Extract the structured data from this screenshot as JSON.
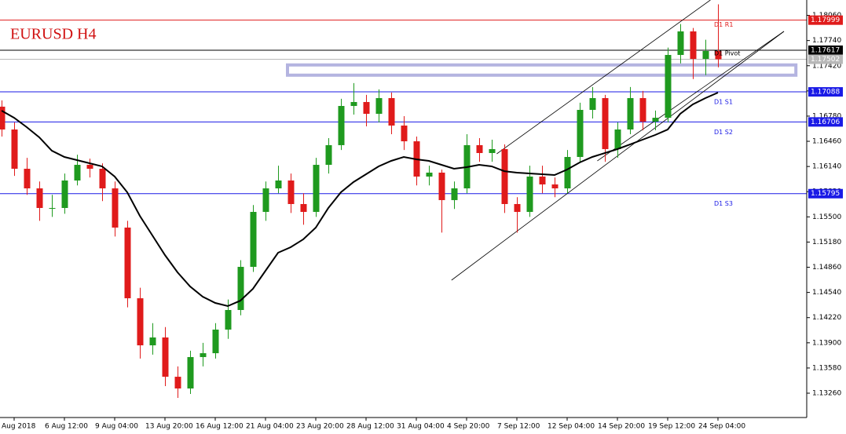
{
  "chart_data": {
    "type": "candlestick",
    "title": "EURUSD H4",
    "bull_color": "#1f9a1f",
    "bear_color": "#e01b1b",
    "ma_color": "#000000",
    "ylim": [
      1.12951,
      1.18255
    ],
    "yticks": [
      {
        "value": 1.1326,
        "label": "1.13260"
      },
      {
        "value": 1.1358,
        "label": "1.13580"
      },
      {
        "value": 1.139,
        "label": "1.13900"
      },
      {
        "value": 1.1422,
        "label": "1.14220"
      },
      {
        "value": 1.1454,
        "label": "1.14540"
      },
      {
        "value": 1.1486,
        "label": "1.14860"
      },
      {
        "value": 1.1518,
        "label": "1.15180"
      },
      {
        "value": 1.155,
        "label": "1.15500"
      },
      {
        "value": 1.1582,
        "label": "1.15820"
      },
      {
        "value": 1.1614,
        "label": "1.16140"
      },
      {
        "value": 1.1646,
        "label": "1.16460"
      },
      {
        "value": 1.1678,
        "label": "1.16780"
      },
      {
        "value": 1.171,
        "label": "1.17100"
      },
      {
        "value": 1.1742,
        "label": "1.17420"
      },
      {
        "value": 1.1774,
        "label": "1.17740"
      },
      {
        "value": 1.1806,
        "label": "1.18060"
      }
    ],
    "categories": [
      null,
      "Aug 2018",
      null,
      null,
      null,
      "6 Aug 12:00",
      null,
      null,
      null,
      "9 Aug 04:00",
      null,
      null,
      null,
      "13 Aug 20:00",
      null,
      null,
      null,
      "16 Aug 12:00",
      null,
      null,
      null,
      "21 Aug 04:00",
      null,
      null,
      null,
      "23 Aug 20:00",
      null,
      null,
      null,
      "28 Aug 12:00",
      null,
      null,
      null,
      "31 Aug 04:00",
      null,
      null,
      null,
      "4 Sep 20:00",
      null,
      null,
      null,
      "7 Sep 12:00",
      null,
      null,
      null,
      "12 Sep 04:00",
      null,
      null,
      null,
      "14 Sep 20:00",
      null,
      null,
      null,
      "19 Sep 12:00",
      null,
      null,
      null,
      "24 Sep 04:00"
    ],
    "ohlc": [
      [
        1.169,
        1.1698,
        1.1652,
        1.1661
      ],
      [
        1.1661,
        1.167,
        1.1602,
        1.16111
      ],
      [
        1.16111,
        1.1625,
        1.1578,
        1.15862
      ],
      [
        1.15862,
        1.1595,
        1.1545,
        1.15613
      ],
      [
        1.15613,
        1.1578,
        1.155,
        1.15613
      ],
      [
        1.15613,
        1.1605,
        1.1554,
        1.15962
      ],
      [
        1.15962,
        1.1629,
        1.159,
        1.16161
      ],
      [
        1.16161,
        1.1624,
        1.16,
        1.16111
      ],
      [
        1.16111,
        1.1618,
        1.157,
        1.15862
      ],
      [
        1.15862,
        1.1595,
        1.1525,
        1.15364
      ],
      [
        1.15364,
        1.1545,
        1.1435,
        1.14466
      ],
      [
        1.14466,
        1.146,
        1.137,
        1.13868
      ],
      [
        1.13868,
        1.1415,
        1.1375,
        1.13968
      ],
      [
        1.13968,
        1.141,
        1.1335,
        1.13469
      ],
      [
        1.13469,
        1.136,
        1.132,
        1.1332
      ],
      [
        1.1332,
        1.138,
        1.1325,
        1.13719
      ],
      [
        1.13719,
        1.139,
        1.136,
        1.13768
      ],
      [
        1.13768,
        1.1415,
        1.137,
        1.14068
      ],
      [
        1.14068,
        1.1445,
        1.1395,
        1.14317
      ],
      [
        1.14317,
        1.1495,
        1.1425,
        1.14865
      ],
      [
        1.14865,
        1.1565,
        1.148,
        1.15563
      ],
      [
        1.15563,
        1.1595,
        1.1545,
        1.15862
      ],
      [
        1.15862,
        1.1615,
        1.158,
        1.15962
      ],
      [
        1.15962,
        1.1605,
        1.1555,
        1.15663
      ],
      [
        1.15663,
        1.158,
        1.154,
        1.15563
      ],
      [
        1.15563,
        1.1625,
        1.155,
        1.16161
      ],
      [
        1.16161,
        1.165,
        1.1605,
        1.16411
      ],
      [
        1.16411,
        1.17,
        1.1635,
        1.16909
      ],
      [
        1.16909,
        1.172,
        1.168,
        1.16959
      ],
      [
        1.16959,
        1.1705,
        1.1665,
        1.16809
      ],
      [
        1.16809,
        1.1712,
        1.167,
        1.17009
      ],
      [
        1.17009,
        1.1708,
        1.1655,
        1.1666
      ],
      [
        1.1666,
        1.1678,
        1.1635,
        1.1646
      ],
      [
        1.1646,
        1.1652,
        1.159,
        1.16012
      ],
      [
        1.16012,
        1.1615,
        1.159,
        1.16062
      ],
      [
        1.16062,
        1.161,
        1.153,
        1.15713
      ],
      [
        1.15713,
        1.1595,
        1.156,
        1.15862
      ],
      [
        1.15862,
        1.1655,
        1.158,
        1.16411
      ],
      [
        1.16411,
        1.165,
        1.162,
        1.16311
      ],
      [
        1.16311,
        1.1648,
        1.162,
        1.16361
      ],
      [
        1.16361,
        1.1642,
        1.1555,
        1.15663
      ],
      [
        1.15663,
        1.1575,
        1.153,
        1.15563
      ],
      [
        1.15563,
        1.1615,
        1.155,
        1.16012
      ],
      [
        1.16012,
        1.1615,
        1.158,
        1.15912
      ],
      [
        1.15912,
        1.16,
        1.1575,
        1.15862
      ],
      [
        1.15862,
        1.1635,
        1.158,
        1.16261
      ],
      [
        1.16261,
        1.1695,
        1.162,
        1.16859
      ],
      [
        1.16859,
        1.1715,
        1.1675,
        1.17009
      ],
      [
        1.17009,
        1.1705,
        1.162,
        1.16361
      ],
      [
        1.16361,
        1.167,
        1.1625,
        1.1661
      ],
      [
        1.1661,
        1.1715,
        1.1655,
        1.17009
      ],
      [
        1.17009,
        1.171,
        1.166,
        1.1671
      ],
      [
        1.1671,
        1.1685,
        1.166,
        1.16759
      ],
      [
        1.16759,
        1.1765,
        1.167,
        1.17557
      ],
      [
        1.17557,
        1.1795,
        1.1745,
        1.17856
      ],
      [
        1.17856,
        1.179,
        1.1725,
        1.17507
      ],
      [
        1.17507,
        1.1775,
        1.173,
        1.17607
      ],
      [
        1.17607,
        1.182,
        1.174,
        1.17502
      ]
    ],
    "ma": [
      1.16849,
      1.16759,
      1.1664,
      1.1651,
      1.16341,
      1.16261,
      1.16221,
      1.16181,
      1.16141,
      1.16012,
      1.15812,
      1.15513,
      1.15264,
      1.15015,
      1.14795,
      1.14616,
      1.14486,
      1.14407,
      1.14367,
      1.14436,
      1.14586,
      1.14815,
      1.15045,
      1.15114,
      1.15214,
      1.15364,
      1.15613,
      1.15812,
      1.15942,
      1.16042,
      1.16141,
      1.16211,
      1.16261,
      1.16231,
      1.16211,
      1.16161,
      1.16111,
      1.16131,
      1.16161,
      1.16141,
      1.16081,
      1.16062,
      1.16052,
      1.16042,
      1.16032,
      1.16101,
      1.16191,
      1.16261,
      1.16311,
      1.16361,
      1.1642,
      1.1648,
      1.1654,
      1.1661,
      1.16809,
      1.16929,
      1.17009,
      1.17079
    ],
    "levels": [
      {
        "name": "D1 R1",
        "value": 1.17999,
        "color": "#e01b1b"
      },
      {
        "name": "D1 Pivot",
        "value": 1.17617,
        "color": "#000000"
      },
      {
        "value": 1.17502,
        "color": "#b8b8b8"
      },
      {
        "name": "D1 S1",
        "value": 1.17088,
        "color": "#1a1ae6"
      },
      {
        "name": "D1 S2",
        "value": 1.16706,
        "color": "#1a1ae6"
      },
      {
        "name": "D1 S3",
        "value": 1.15795,
        "color": "#1a1ae6"
      }
    ],
    "zone": {
      "x": [
        22.75,
        63.2
      ],
      "y": [
        1.173,
        1.1743
      ],
      "color": "#b4b4e0"
    },
    "trendlines": [
      {
        "x": [
          35.8,
          62.25
        ],
        "y": [
          1.14696,
          1.17856
        ]
      },
      {
        "x": [
          39.4,
          56.4
        ],
        "y": [
          1.16301,
          1.18255
        ]
      },
      {
        "x": [
          47.4,
          62.25
        ],
        "y": [
          1.16211,
          1.17856
        ]
      }
    ]
  }
}
